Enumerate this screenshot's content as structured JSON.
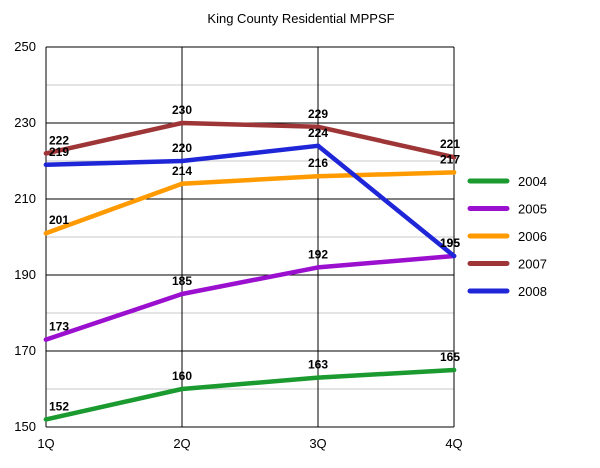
{
  "chart_data": {
    "type": "line",
    "title": "King County Residential MPPSF",
    "xlabel": "",
    "ylabel": "",
    "categories": [
      "1Q",
      "2Q",
      "3Q",
      "4Q"
    ],
    "ylim": [
      150,
      250
    ],
    "yticks": [
      "150",
      "170",
      "190",
      "210",
      "230",
      "250"
    ],
    "grid": "horizontal and vertical",
    "legend_position": "right",
    "series": [
      {
        "name": "2004",
        "color": "#1a9a2f",
        "values": [
          152,
          160,
          163,
          165
        ],
        "labels": [
          "152",
          "160",
          "163",
          "165"
        ]
      },
      {
        "name": "2005",
        "color": "#9b0fcf",
        "values": [
          173,
          185,
          192,
          195
        ],
        "labels": [
          "173",
          "185",
          "192",
          "195"
        ]
      },
      {
        "name": "2006",
        "color": "#ff9a00",
        "values": [
          201,
          214,
          216,
          217
        ],
        "labels": [
          "201",
          "214",
          "216",
          "217"
        ]
      },
      {
        "name": "2007",
        "color": "#9e3536",
        "values": [
          222,
          230,
          229,
          221
        ],
        "labels": [
          "222",
          "230",
          "229",
          "221"
        ]
      },
      {
        "name": "2008",
        "color": "#1f26d8",
        "values": [
          219,
          220,
          224,
          195
        ],
        "labels": [
          "219",
          "220",
          "224",
          "195"
        ]
      }
    ]
  }
}
